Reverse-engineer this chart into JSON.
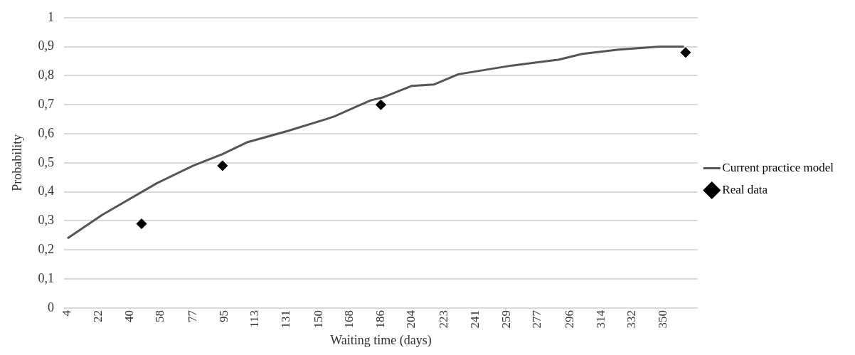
{
  "chart_data": {
    "type": "line",
    "xlabel": "Waiting time (days)",
    "ylabel": "Probability",
    "xlim": [
      2,
      370
    ],
    "xticks": [
      4,
      22,
      40,
      58,
      77,
      95,
      113,
      131,
      150,
      168,
      186,
      204,
      223,
      241,
      259,
      277,
      296,
      314,
      332,
      350
    ],
    "ylim": [
      0,
      1
    ],
    "yticks": [
      0,
      {
        "value": 0.1,
        "label": "0,1"
      },
      {
        "value": 0.2,
        "label": "0,2"
      },
      {
        "value": 0.3,
        "label": "0,3"
      },
      {
        "value": 0.4,
        "label": "0,4"
      },
      {
        "value": 0.5,
        "label": "0,5"
      },
      {
        "value": 0.6,
        "label": "0,6"
      },
      {
        "value": 0.7,
        "label": "0,7"
      },
      {
        "value": 0.8,
        "label": "0,8"
      },
      {
        "value": 0.9,
        "label": "0,9"
      },
      1
    ],
    "grid": "y",
    "legend": "right",
    "series": [
      {
        "name": "Current practice model",
        "color": "#555555",
        "marker": "none",
        "x": [
          4,
          24,
          56,
          77,
          94,
          108,
          132,
          154,
          159,
          180,
          187,
          204,
          217,
          231,
          262,
          289,
          303,
          324,
          348,
          362
        ],
        "values": [
          0.24,
          0.32,
          0.43,
          0.49,
          0.53,
          0.57,
          0.61,
          0.65,
          0.66,
          0.715,
          0.725,
          0.765,
          0.77,
          0.805,
          0.835,
          0.855,
          0.875,
          0.89,
          0.9,
          0.9
        ]
      },
      {
        "name": "Real data",
        "type": "scatter",
        "color": "#000000",
        "marker": "diamond",
        "x": [
          47,
          94,
          186,
          363
        ],
        "values": [
          0.29,
          0.49,
          0.7,
          0.88
        ]
      }
    ]
  }
}
